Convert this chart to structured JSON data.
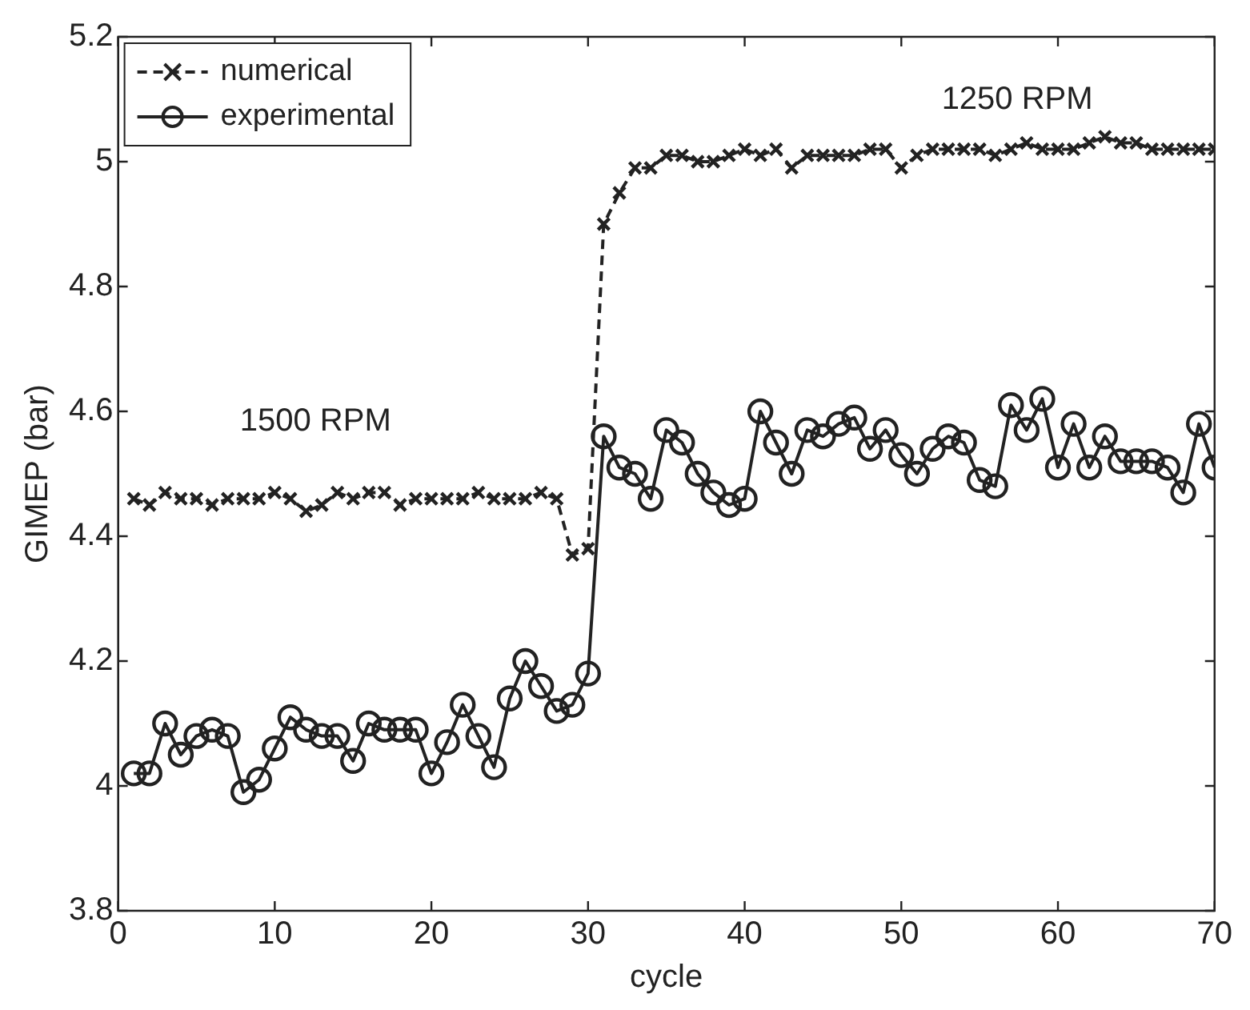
{
  "chart_data": {
    "type": "line",
    "xlabel": "cycle",
    "ylabel": "GIMEP (bar)",
    "x": [
      1,
      2,
      3,
      4,
      5,
      6,
      7,
      8,
      9,
      10,
      11,
      12,
      13,
      14,
      15,
      16,
      17,
      18,
      19,
      20,
      21,
      22,
      23,
      24,
      25,
      26,
      27,
      28,
      29,
      30,
      31,
      32,
      33,
      34,
      35,
      36,
      37,
      38,
      39,
      40,
      41,
      42,
      43,
      44,
      45,
      46,
      47,
      48,
      49,
      50,
      51,
      52,
      53,
      54,
      55,
      56,
      57,
      58,
      59,
      60,
      61,
      62,
      63,
      64,
      65,
      66,
      67,
      68,
      69,
      70
    ],
    "series": [
      {
        "name": "numerical",
        "color": "#222222",
        "marker": "cross",
        "line_style": "dashed",
        "values": [
          4.46,
          4.45,
          4.47,
          4.46,
          4.46,
          4.45,
          4.46,
          4.46,
          4.46,
          4.47,
          4.46,
          4.44,
          4.45,
          4.47,
          4.46,
          4.47,
          4.47,
          4.45,
          4.46,
          4.46,
          4.46,
          4.46,
          4.47,
          4.46,
          4.46,
          4.46,
          4.47,
          4.46,
          4.37,
          4.38,
          4.9,
          4.95,
          4.99,
          4.99,
          5.01,
          5.01,
          5,
          5,
          5.01,
          5.02,
          5.01,
          5.02,
          4.99,
          5.01,
          5.01,
          5.01,
          5.01,
          5.02,
          5.02,
          4.99,
          5.01,
          5.02,
          5.02,
          5.02,
          5.02,
          5.01,
          5.02,
          5.03,
          5.02,
          5.02,
          5.02,
          5.03,
          5.04,
          5.03,
          5.03,
          5.02,
          5.02,
          5.02,
          5.02,
          5.02
        ]
      },
      {
        "name": "experimental",
        "color": "#222222",
        "marker": "circle",
        "line_style": "solid",
        "values": [
          4.02,
          4.02,
          4.1,
          4.05,
          4.08,
          4.09,
          4.08,
          3.99,
          4.01,
          4.06,
          4.11,
          4.09,
          4.08,
          4.08,
          4.04,
          4.1,
          4.09,
          4.09,
          4.09,
          4.02,
          4.07,
          4.13,
          4.08,
          4.03,
          4.14,
          4.2,
          4.16,
          4.12,
          4.13,
          4.18,
          4.56,
          4.51,
          4.5,
          4.46,
          4.57,
          4.55,
          4.5,
          4.47,
          4.45,
          4.46,
          4.6,
          4.55,
          4.5,
          4.57,
          4.56,
          4.58,
          4.59,
          4.54,
          4.57,
          4.53,
          4.5,
          4.54,
          4.56,
          4.55,
          4.49,
          4.48,
          4.61,
          4.57,
          4.62,
          4.51,
          4.58,
          4.51,
          4.56,
          4.52,
          4.52,
          4.52,
          4.51,
          4.47,
          4.58,
          4.51
        ]
      }
    ],
    "xlim": [
      0,
      70
    ],
    "xticks": [
      0,
      10,
      20,
      30,
      40,
      50,
      60,
      70
    ],
    "ylim": [
      3.8,
      5.2
    ],
    "yticks": [
      3.8,
      4,
      4.2,
      4.4,
      4.6,
      4.8,
      5,
      5.2
    ],
    "annotations": [
      "1500 RPM",
      "1250 RPM"
    ],
    "legend": "top left",
    "grid": false
  }
}
